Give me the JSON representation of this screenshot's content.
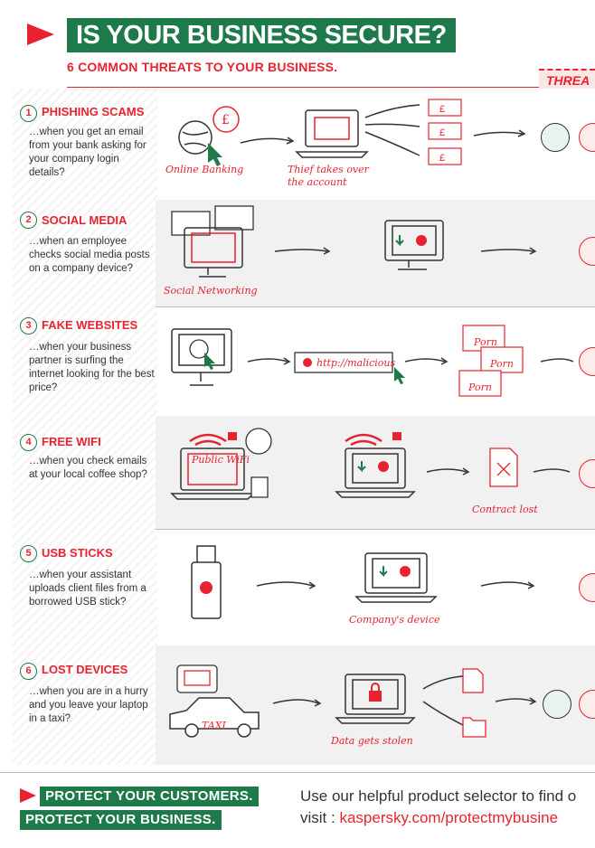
{
  "header": {
    "title": "IS YOUR BUSINESS SECURE?",
    "subtitle": "6 COMMON THREATS TO YOUR BUSINESS.",
    "corner_tag": "THREA"
  },
  "threats": [
    {
      "num": "1",
      "title": "PHISHING SCAMS",
      "desc": "…when you get an email from your bank asking for your company login details?",
      "labels": [
        "Online Banking",
        "Thief takes over the account"
      ]
    },
    {
      "num": "2",
      "title": "SOCIAL MEDIA",
      "desc": "…when an employee checks social media posts on a company device?",
      "labels": [
        "Social Networking"
      ]
    },
    {
      "num": "3",
      "title": "FAKE WEBSITES",
      "desc": "…when your business partner is surfing the internet looking for the best price?",
      "labels": [
        "http://malicious",
        "Porn",
        "Porn",
        "Porn"
      ]
    },
    {
      "num": "4",
      "title": "FREE WIFI",
      "desc": "…when you check emails at your local coffee shop?",
      "labels": [
        "Public WiFi",
        "Contract lost"
      ]
    },
    {
      "num": "5",
      "title": "USB STICKS",
      "desc": "…when your assistant uploads client files from a borrowed USB stick?",
      "labels": [
        "Company's device"
      ]
    },
    {
      "num": "6",
      "title": "LOST DEVICES",
      "desc": "…when you are in a hurry and you leave your laptop in a taxi?",
      "labels": [
        "TAXI",
        "Data gets stolen"
      ]
    }
  ],
  "footer": {
    "cta_line1": "PROTECT YOUR CUSTOMERS",
    "cta_line2": "PROTECT YOUR BUSINESS",
    "cta_dot": ".",
    "selector_text": "Use our helpful product selector to find o",
    "visit_label": "visit :",
    "visit_url": "kaspersky.com/protectmybusine"
  },
  "colors": {
    "red": "#e8232f",
    "green": "#1e7a4a"
  }
}
